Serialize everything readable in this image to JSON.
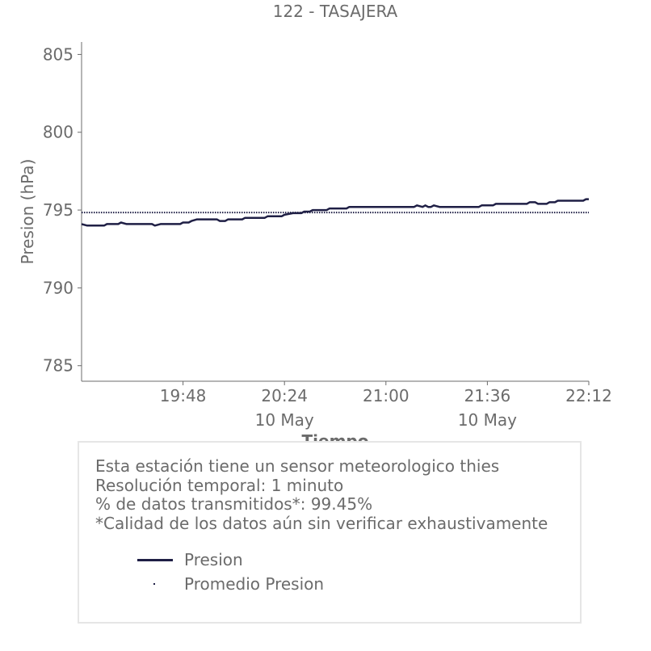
{
  "chart_data": {
    "type": "line",
    "title": "122 - TASAJERA",
    "xlabel": "Tiempo",
    "ylabel": "Presion (hPa)",
    "ylim": [
      784,
      805.8
    ],
    "yticks": [
      785,
      790,
      795,
      800,
      805
    ],
    "xlim_minutes": [
      1152,
      1332
    ],
    "xticks": [
      {
        "label": "19:48",
        "minute": 1188,
        "date": ""
      },
      {
        "label": "20:24",
        "minute": 1224,
        "date": "10 May"
      },
      {
        "label": "21:00",
        "minute": 1260,
        "date": ""
      },
      {
        "label": "21:36",
        "minute": 1296,
        "date": "10 May"
      },
      {
        "label": "22:12",
        "minute": 1332,
        "date": ""
      }
    ],
    "series": [
      {
        "name": "Presion",
        "color": "#1f1f45",
        "style": "solid",
        "points": [
          [
            "19:12",
            794.1
          ],
          [
            "19:14",
            794.0
          ],
          [
            "19:20",
            794.0
          ],
          [
            "19:21",
            794.1
          ],
          [
            "19:25",
            794.1
          ],
          [
            "19:26",
            794.2
          ],
          [
            "19:28",
            794.1
          ],
          [
            "19:37",
            794.1
          ],
          [
            "19:38",
            794.0
          ],
          [
            "19:40",
            794.1
          ],
          [
            "19:47",
            794.1
          ],
          [
            "19:48",
            794.2
          ],
          [
            "19:50",
            794.2
          ],
          [
            "19:51",
            794.3
          ],
          [
            "19:53",
            794.4
          ],
          [
            "20:00",
            794.4
          ],
          [
            "20:01",
            794.3
          ],
          [
            "20:03",
            794.3
          ],
          [
            "20:04",
            794.4
          ],
          [
            "20:09",
            794.4
          ],
          [
            "20:10",
            794.5
          ],
          [
            "20:17",
            794.5
          ],
          [
            "20:18",
            794.6
          ],
          [
            "20:23",
            794.6
          ],
          [
            "20:24",
            794.7
          ],
          [
            "20:27",
            794.8
          ],
          [
            "20:30",
            794.8
          ],
          [
            "20:31",
            794.9
          ],
          [
            "20:33",
            794.9
          ],
          [
            "20:34",
            795.0
          ],
          [
            "20:39",
            795.0
          ],
          [
            "20:40",
            795.1
          ],
          [
            "20:46",
            795.1
          ],
          [
            "20:47",
            795.2
          ],
          [
            "21:10",
            795.2
          ],
          [
            "21:11",
            795.3
          ],
          [
            "21:13",
            795.2
          ],
          [
            "21:14",
            795.3
          ],
          [
            "21:15",
            795.2
          ],
          [
            "21:16",
            795.2
          ],
          [
            "21:17",
            795.3
          ],
          [
            "21:19",
            795.2
          ],
          [
            "21:33",
            795.2
          ],
          [
            "21:34",
            795.3
          ],
          [
            "21:38",
            795.3
          ],
          [
            "21:39",
            795.4
          ],
          [
            "21:50",
            795.4
          ],
          [
            "21:51",
            795.5
          ],
          [
            "21:53",
            795.5
          ],
          [
            "21:54",
            795.4
          ],
          [
            "21:57",
            795.4
          ],
          [
            "21:58",
            795.5
          ],
          [
            "22:00",
            795.5
          ],
          [
            "22:01",
            795.6
          ],
          [
            "22:10",
            795.6
          ],
          [
            "22:11",
            795.7
          ],
          [
            "22:12",
            795.7
          ]
        ]
      },
      {
        "name": "Promedio Presion",
        "color": "#1f1f45",
        "style": "dotted",
        "value": 794.84
      }
    ],
    "grid": false,
    "legend_placement": "bottom, inside info box"
  },
  "info": {
    "line1": "Esta estación tiene un sensor meteorologico thies",
    "line2": "Resolución temporal: 1 minuto",
    "line3": "% de datos transmitidos*: 99.45%",
    "line4": "*Calidad de los datos aún sin verificar exhaustivamente"
  },
  "legend": {
    "item1": "Presion",
    "item2": "Promedio Presion"
  },
  "colors": {
    "line": "#1f1f45",
    "axis": "#6b6b6b",
    "text": "#6b6b6b",
    "box_border": "#e6e6e6"
  }
}
